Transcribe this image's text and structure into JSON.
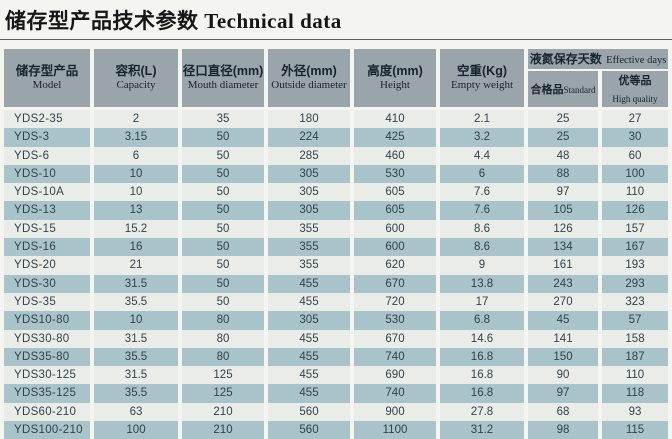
{
  "page_title": "储存型产品技术参数 Technical data",
  "colors": {
    "page_bg": "#f4f5f1",
    "header_bg": "#9aa4ab",
    "row_light": "#eaece8",
    "row_teal": "#a8c3c9",
    "title_rule": "#5c5e60",
    "text_dark": "#16242d"
  },
  "table": {
    "columns": [
      {
        "key": "model",
        "zh": "储存型产品",
        "en": "Model"
      },
      {
        "key": "capacity",
        "zh": "容积(L)",
        "en": "Capacity"
      },
      {
        "key": "mouth",
        "zh": "径口直径(mm)",
        "en": "Mouth diameter"
      },
      {
        "key": "outside",
        "zh": "外径(mm)",
        "en": "Outside diameter"
      },
      {
        "key": "height",
        "zh": "高度(mm)",
        "en": "Height"
      },
      {
        "key": "weight",
        "zh": "空重(Kg)",
        "en": "Empty weight"
      }
    ],
    "group_header": {
      "zh": "液氮保存天数",
      "en": "Effective days"
    },
    "sub_headers": [
      {
        "key": "standard",
        "zh": "合格品",
        "en": "Standard"
      },
      {
        "key": "high_quality",
        "zh": "优等品",
        "en": "High quality"
      }
    ],
    "rows": [
      {
        "model": "YDS2-35",
        "capacity": "2",
        "mouth": "35",
        "outside": "180",
        "height": "410",
        "weight": "2.1",
        "standard": "25",
        "high_quality": "27"
      },
      {
        "model": "YDS-3",
        "capacity": "3.15",
        "mouth": "50",
        "outside": "224",
        "height": "425",
        "weight": "3.2",
        "standard": "25",
        "high_quality": "30"
      },
      {
        "model": "YDS-6",
        "capacity": "6",
        "mouth": "50",
        "outside": "285",
        "height": "460",
        "weight": "4.4",
        "standard": "48",
        "high_quality": "60"
      },
      {
        "model": "YDS-10",
        "capacity": "10",
        "mouth": "50",
        "outside": "305",
        "height": "530",
        "weight": "6",
        "standard": "88",
        "high_quality": "100"
      },
      {
        "model": "YDS-10A",
        "capacity": "10",
        "mouth": "50",
        "outside": "305",
        "height": "605",
        "weight": "7.6",
        "standard": "97",
        "high_quality": "110"
      },
      {
        "model": "YDS-13",
        "capacity": "13",
        "mouth": "50",
        "outside": "305",
        "height": "605",
        "weight": "7.6",
        "standard": "105",
        "high_quality": "126"
      },
      {
        "model": "YDS-15",
        "capacity": "15.2",
        "mouth": "50",
        "outside": "355",
        "height": "600",
        "weight": "8.6",
        "standard": "126",
        "high_quality": "157"
      },
      {
        "model": "YDS-16",
        "capacity": "16",
        "mouth": "50",
        "outside": "355",
        "height": "600",
        "weight": "8.6",
        "standard": "134",
        "high_quality": "167"
      },
      {
        "model": "YDS-20",
        "capacity": "21",
        "mouth": "50",
        "outside": "355",
        "height": "620",
        "weight": "9",
        "standard": "161",
        "high_quality": "193"
      },
      {
        "model": "YDS-30",
        "capacity": "31.5",
        "mouth": "50",
        "outside": "455",
        "height": "670",
        "weight": "13.8",
        "standard": "243",
        "high_quality": "293"
      },
      {
        "model": "YDS-35",
        "capacity": "35.5",
        "mouth": "50",
        "outside": "455",
        "height": "720",
        "weight": "17",
        "standard": "270",
        "high_quality": "323"
      },
      {
        "model": "YDS10-80",
        "capacity": "10",
        "mouth": "80",
        "outside": "305",
        "height": "530",
        "weight": "6.8",
        "standard": "45",
        "high_quality": "57"
      },
      {
        "model": "YDS30-80",
        "capacity": "31.5",
        "mouth": "80",
        "outside": "455",
        "height": "670",
        "weight": "14.6",
        "standard": "141",
        "high_quality": "158"
      },
      {
        "model": "YDS35-80",
        "capacity": "35.5",
        "mouth": "80",
        "outside": "455",
        "height": "740",
        "weight": "16.8",
        "standard": "150",
        "high_quality": "187"
      },
      {
        "model": "YDS30-125",
        "capacity": "31.5",
        "mouth": "125",
        "outside": "455",
        "height": "690",
        "weight": "16.8",
        "standard": "90",
        "high_quality": "110"
      },
      {
        "model": "YDS35-125",
        "capacity": "35.5",
        "mouth": "125",
        "outside": "455",
        "height": "740",
        "weight": "16.8",
        "standard": "97",
        "high_quality": "118"
      },
      {
        "model": "YDS60-210",
        "capacity": "63",
        "mouth": "210",
        "outside": "560",
        "height": "900",
        "weight": "27.8",
        "standard": "68",
        "high_quality": "93"
      },
      {
        "model": "YDS100-210",
        "capacity": "100",
        "mouth": "210",
        "outside": "560",
        "height": "1100",
        "weight": "31.2",
        "standard": "98",
        "high_quality": "115"
      }
    ]
  }
}
